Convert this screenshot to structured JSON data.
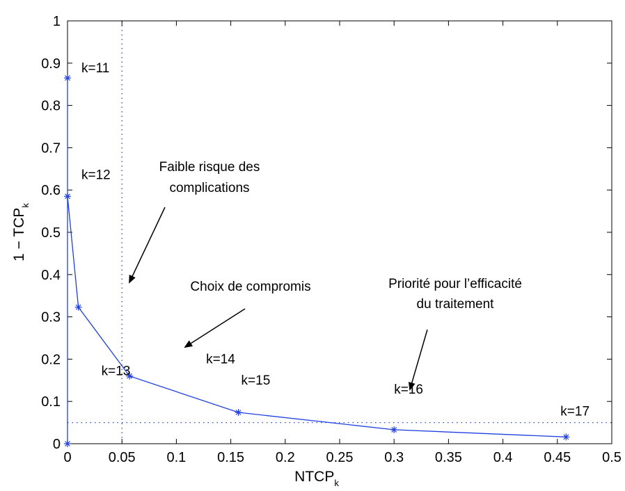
{
  "chart_data": {
    "type": "line",
    "xlabel": {
      "main": "NTCP",
      "sub": "k"
    },
    "ylabel": {
      "main": "1 − TCP",
      "sub": "k"
    },
    "xlim": [
      0,
      0.5
    ],
    "ylim": [
      0,
      1
    ],
    "xticks": [
      0,
      0.05,
      0.1,
      0.15,
      0.2,
      0.25,
      0.3,
      0.35,
      0.4,
      0.45,
      0.5
    ],
    "xtick_labels": [
      "0",
      "0.05",
      "0.1",
      "0.15",
      "0.2",
      "0.25",
      "0.3",
      "0.35",
      "0.4",
      "0.45",
      "0.5"
    ],
    "yticks": [
      0,
      0.1,
      0.2,
      0.3,
      0.4,
      0.5,
      0.6,
      0.7,
      0.8,
      0.9,
      1
    ],
    "ytick_labels": [
      "0",
      "0.1",
      "0.2",
      "0.3",
      "0.4",
      "0.5",
      "0.6",
      "0.7",
      "0.8",
      "0.9",
      "1"
    ],
    "series": [
      {
        "color": "#1f3fe0",
        "marker": "asterisk",
        "x": [
          0,
          0.0,
          0.0,
          0.01,
          0.057,
          0.157,
          0.3,
          0.458
        ],
        "y": [
          0,
          0.865,
          0.585,
          0.323,
          0.16,
          0.074,
          0.033,
          0.016
        ]
      }
    ],
    "point_labels": [
      {
        "text": "k=11",
        "x": 0.0,
        "y": 0.865
      },
      {
        "text": "k=12",
        "x": 0.0,
        "y": 0.585
      },
      {
        "text": "k=13",
        "x": 0.01,
        "y": 0.323
      },
      {
        "text": "k=14",
        "x": 0.057,
        "y": 0.16
      },
      {
        "text": "k=15",
        "x": 0.157,
        "y": 0.074
      },
      {
        "text": "k=16",
        "x": 0.3,
        "y": 0.033
      },
      {
        "text": "k=17",
        "x": 0.458,
        "y": 0.016
      }
    ],
    "reference_lines": [
      {
        "orientation": "vertical",
        "value": 0.05,
        "style": "dotted",
        "color": "#1f3fe0"
      },
      {
        "orientation": "horizontal",
        "value": 0.05,
        "style": "dotted",
        "color": "#1f3fe0"
      }
    ],
    "annotations": [
      {
        "lines": [
          "Faible risque des",
          "complications"
        ]
      },
      {
        "lines": [
          "Choix de compromis"
        ]
      },
      {
        "lines": [
          "Priorité pour l’efficacité",
          "du traitement"
        ]
      }
    ],
    "grid": false
  }
}
